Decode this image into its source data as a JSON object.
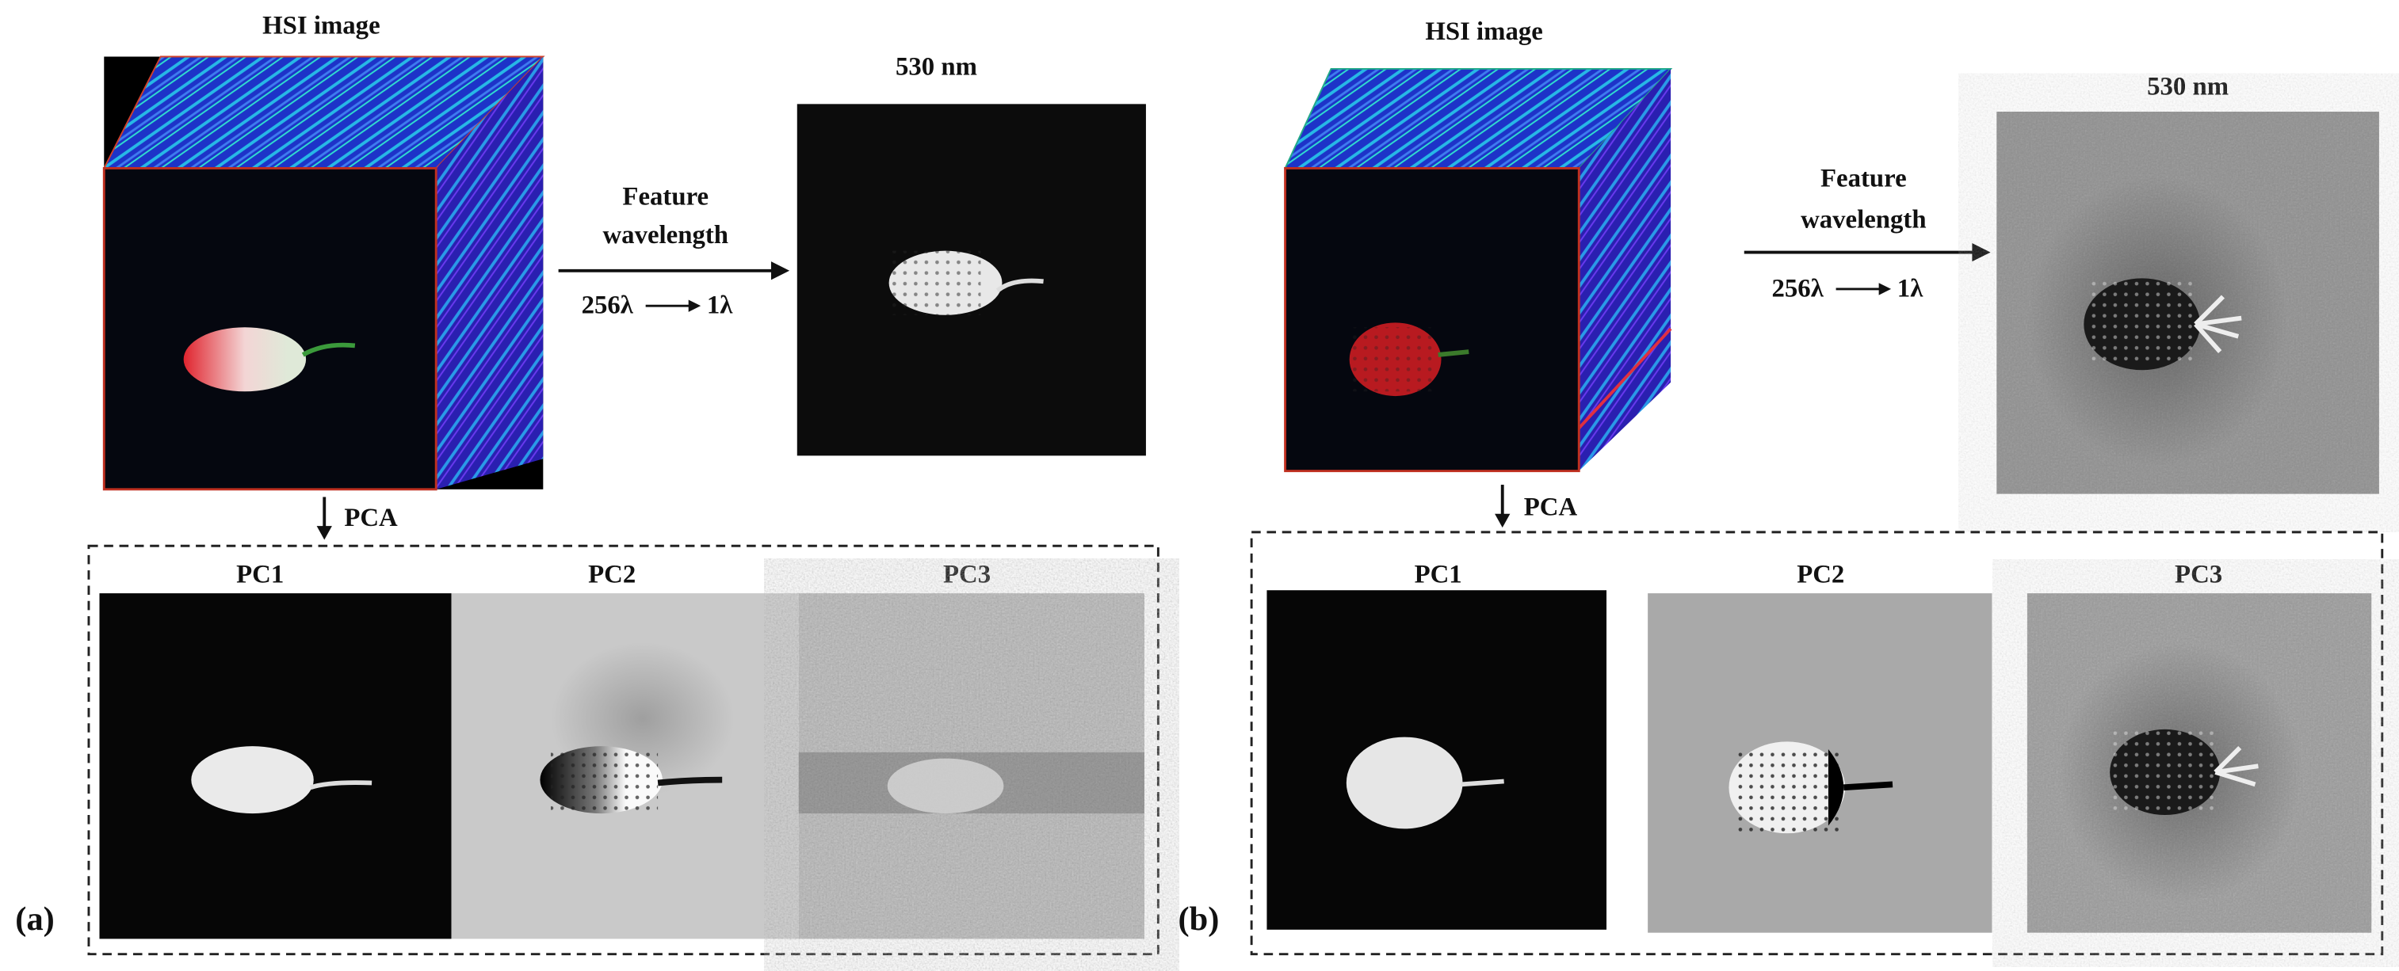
{
  "panels": [
    {
      "label": "(a)",
      "hsi_title": "HSI image",
      "band_title": "530 nm",
      "feature": {
        "line1": "Feature",
        "line2": "wavelength",
        "from": "256λ",
        "to": "1λ"
      },
      "pca_label": "PCA",
      "components": [
        "PC1",
        "PC2",
        "PC3"
      ]
    },
    {
      "label": "(b)",
      "hsi_title": "HSI image",
      "band_title": "530 nm",
      "feature": {
        "line1": "Feature",
        "line2": "wavelength",
        "from": "256λ",
        "to": "1λ"
      },
      "pca_label": "PCA",
      "components": [
        "PC1",
        "PC2",
        "PC3"
      ]
    }
  ]
}
